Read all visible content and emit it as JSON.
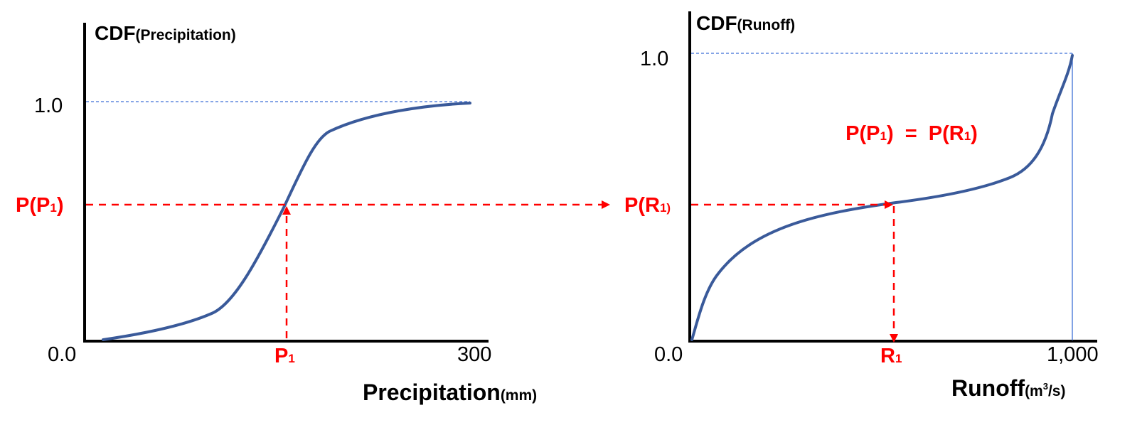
{
  "left_panel": {
    "title_main": "CDF",
    "title_sub": "(Precipitation)",
    "y_tick_top": "1.0",
    "y_tick_bottom": "0.0",
    "x_tick_end": "300",
    "y_marker": "P(P",
    "y_marker_sub": "1",
    "y_marker_close": ")",
    "x_marker": "P",
    "x_marker_sub": "1",
    "x_label_main": "Precipitation",
    "x_label_sub": "(mm)"
  },
  "right_panel": {
    "title_main": "CDF",
    "title_sub": "(Runoff)",
    "y_tick_top": "1.0",
    "y_tick_bottom": "0.0",
    "x_tick_end": "1,000",
    "y_marker": "P(R",
    "y_marker_sub": "1)",
    "x_marker": "R",
    "x_marker_sub": "1",
    "x_label_main": "Runoff",
    "x_label_paren_open": "(m",
    "x_label_sup": "3",
    "x_label_paren_close": "/s)",
    "equation_a": "P(P",
    "equation_a_sub": "1",
    "equation_mid": ")  =  P(R",
    "equation_b_sub": "1",
    "equation_close": ")"
  },
  "colors": {
    "curve": "#3a5a9a",
    "marker": "#ff0000",
    "guide": "#3d6fd6",
    "axis": "#000000"
  }
}
